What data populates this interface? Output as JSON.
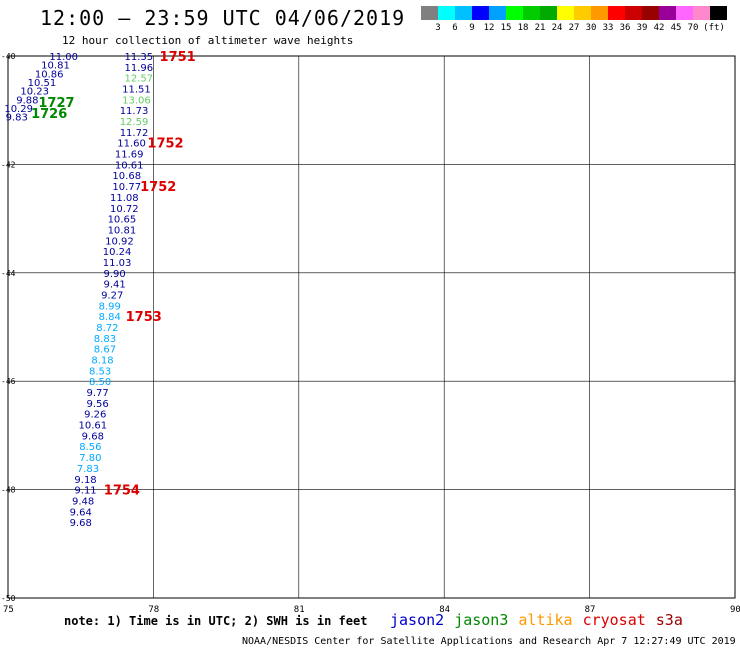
{
  "header": {
    "title": "12:00 – 23:59 UTC 04/06/2019",
    "subtitle": "12 hour collection of altimeter wave heights"
  },
  "legend": {
    "colors": [
      "#808080",
      "#00ffff",
      "#00c0ff",
      "#0000ff",
      "#00a0ff",
      "#00ff00",
      "#00cc00",
      "#00aa00",
      "#ffff00",
      "#ffcc00",
      "#ff9900",
      "#ff0000",
      "#cc0000",
      "#990000",
      "#990099",
      "#ff66ff",
      "#ff88cc",
      "#000000"
    ],
    "labels": [
      "3",
      "6",
      "9",
      "12",
      "15",
      "18",
      "21",
      "24",
      "27",
      "30",
      "33",
      "36",
      "39",
      "42",
      "45",
      "70",
      "(ft)"
    ]
  },
  "map": {
    "lat_labels": [
      "-40",
      "-42",
      "-44",
      "-46",
      "-48",
      "-50"
    ],
    "lon_labels": [
      "75",
      "78",
      "81",
      "84",
      "87",
      "90"
    ],
    "lat_range": [
      -50,
      -40
    ],
    "lon_range": [
      75,
      90
    ],
    "tracks": [
      {
        "color": "#000099",
        "values": [
          "11.00",
          "10.81",
          "10.86",
          "10.51",
          "10.23",
          "9.88",
          "10.29",
          "9.83"
        ],
        "lat": [
          -40.0,
          -40.16,
          -40.32,
          -40.48,
          -40.64,
          -40.8,
          -40.96,
          -41.12
        ],
        "lon": [
          76.15,
          75.98,
          75.85,
          75.7,
          75.55,
          75.4,
          75.22,
          75.18
        ]
      },
      {
        "color": "#000099",
        "values": [
          "11.35",
          "11.96"
        ],
        "lat": [
          -40.0,
          -40.2
        ],
        "lon": [
          77.7,
          77.7
        ]
      },
      {
        "color": "#66cc66",
        "values": [
          "12.57"
        ],
        "lat": [
          -40.4
        ],
        "lon": [
          77.7
        ]
      },
      {
        "color": "#000099",
        "values": [
          "11.51"
        ],
        "lat": [
          -40.6
        ],
        "lon": [
          77.65
        ]
      },
      {
        "color": "#66cc66",
        "values": [
          "13.06"
        ],
        "lat": [
          -40.8
        ],
        "lon": [
          77.65
        ]
      },
      {
        "color": "#000099",
        "values": [
          "11.73"
        ],
        "lat": [
          -41.0
        ],
        "lon": [
          77.6
        ]
      },
      {
        "color": "#66cc66",
        "values": [
          "12.59"
        ],
        "lat": [
          -41.2
        ],
        "lon": [
          77.6
        ]
      },
      {
        "color": "#000099",
        "values": [
          "11.72",
          "11.60",
          "11.69",
          "10.61",
          "10.68",
          "10.77",
          "11.08",
          "10.72",
          "10.65",
          "10.81",
          "10.92",
          "10.24",
          "11.03",
          "9.90",
          "9.41",
          "9.27"
        ],
        "lat": [
          -41.4,
          -41.6,
          -41.8,
          -42.0,
          -42.2,
          -42.4,
          -42.6,
          -42.8,
          -43.0,
          -43.2,
          -43.4,
          -43.6,
          -43.8,
          -44.0,
          -44.2,
          -44.4
        ],
        "lon": [
          77.6,
          77.55,
          77.5,
          77.5,
          77.45,
          77.45,
          77.4,
          77.4,
          77.35,
          77.35,
          77.3,
          77.25,
          77.25,
          77.2,
          77.2,
          77.15
        ]
      },
      {
        "color": "#00aaff",
        "values": [
          "8.99",
          "8.84",
          "8.72",
          "8.83",
          "8.67",
          "8.18",
          "8.53",
          "8.50"
        ],
        "lat": [
          -44.6,
          -44.8,
          -45.0,
          -45.2,
          -45.4,
          -45.6,
          -45.8,
          -46.0
        ],
        "lon": [
          77.1,
          77.1,
          77.05,
          77.0,
          77.0,
          76.95,
          76.9,
          76.9
        ]
      },
      {
        "color": "#000099",
        "values": [
          "9.77",
          "9.56",
          "9.26",
          "10.61",
          "9.68"
        ],
        "lat": [
          -46.2,
          -46.4,
          -46.6,
          -46.8,
          -47.0
        ],
        "lon": [
          76.85,
          76.85,
          76.8,
          76.75,
          76.75
        ]
      },
      {
        "color": "#00aaff",
        "values": [
          "8.56",
          "7.80",
          "7.83"
        ],
        "lat": [
          -47.2,
          -47.4,
          -47.6
        ],
        "lon": [
          76.7,
          76.7,
          76.65
        ]
      },
      {
        "color": "#000099",
        "values": [
          "9.18",
          "9.11",
          "9.48",
          "9.64",
          "9.68"
        ],
        "lat": [
          -47.8,
          -48.0,
          -48.2,
          -48.4,
          -48.6
        ],
        "lon": [
          76.6,
          76.6,
          76.55,
          76.5,
          76.5
        ]
      }
    ],
    "time_labels": [
      {
        "text": "1727",
        "color": "#008800",
        "lat": -40.85,
        "lon": 76.0
      },
      {
        "text": "1726",
        "color": "#008800",
        "lat": -41.05,
        "lon": 75.85
      },
      {
        "text": "1751",
        "color": "#dd0000",
        "lat": -40.0,
        "lon": 78.5
      },
      {
        "text": "1752",
        "color": "#dd0000",
        "lat": -41.6,
        "lon": 78.25
      },
      {
        "text": "1752",
        "color": "#dd0000",
        "lat": -42.4,
        "lon": 78.1
      },
      {
        "text": "1753",
        "color": "#dd0000",
        "lat": -44.8,
        "lon": 77.8
      },
      {
        "text": "1754",
        "color": "#dd0000",
        "lat": -48.0,
        "lon": 77.35
      }
    ]
  },
  "footer": {
    "note": "note: 1) Time is in UTC; 2) SWH is in feet",
    "satellites": [
      {
        "name": "jason2",
        "color": "#0000cc"
      },
      {
        "name": "jason3",
        "color": "#008800"
      },
      {
        "name": "altika",
        "color": "#ff9900"
      },
      {
        "name": "cryosat",
        "color": "#dd0000"
      },
      {
        "name": "s3a",
        "color": "#990000"
      }
    ],
    "credit": "NOAA/NESDIS Center for Satellite Applications and Research   Apr  7 12:27:49 UTC 2019"
  }
}
